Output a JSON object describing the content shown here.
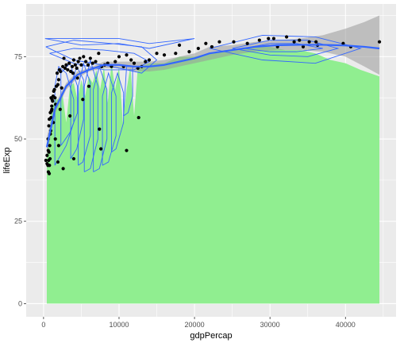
{
  "chart_data": {
    "type": "scatter",
    "xlabel": "gdpPercap",
    "ylabel": "lifeExp",
    "xlim": [
      -2300,
      46700
    ],
    "ylim": [
      -4,
      91
    ],
    "x_ticks": [
      0,
      10000,
      20000,
      30000,
      40000
    ],
    "x_tick_labels": [
      "0",
      "10000",
      "20000",
      "30000",
      "40000"
    ],
    "y_ticks": [
      0,
      25,
      50,
      75
    ],
    "y_tick_labels": [
      "0",
      "25",
      "50",
      "75"
    ],
    "grid": true,
    "colors": {
      "panel": "#ebebeb",
      "grid_major": "#ffffff",
      "area_fill": "#90ee90",
      "ribbon": "#999999",
      "smooth": "#3366ff",
      "contour": "#3366ff",
      "points": "#000000"
    },
    "area_profile": {
      "note": "Green filled area from y=0 up to a jagged upper profile (density-shaped)",
      "x": [
        430,
        1000,
        1500,
        2000,
        2500,
        3000,
        3500,
        4000,
        4500,
        5000,
        5500,
        6000,
        6500,
        7000,
        7500,
        8000,
        8500,
        9000,
        9500,
        10000,
        10500,
        11000,
        11500,
        12000,
        12500,
        13000,
        14000,
        15000,
        16000,
        17000,
        18000,
        20000,
        22000,
        24000,
        26000,
        28000,
        30000,
        32000,
        34000,
        36000,
        38000,
        40000,
        42000,
        44500
      ],
      "y": [
        44,
        58,
        62,
        62,
        64,
        55,
        66,
        67,
        62,
        68,
        63,
        69,
        67,
        71,
        65,
        72,
        61,
        73,
        65,
        72,
        55,
        65,
        72,
        57,
        72,
        72,
        73,
        73,
        73,
        74,
        75,
        75,
        76,
        77,
        77,
        78,
        78,
        77,
        77,
        76,
        74,
        73,
        71,
        69
      ]
    },
    "smooth": {
      "x": [
        430,
        1500,
        3000,
        4500,
        6000,
        8000,
        10000,
        12000,
        14000,
        16000,
        18000,
        20000,
        22000,
        25000,
        28000,
        31000,
        34000,
        37000,
        40000,
        42500,
        44500
      ],
      "y": [
        47.5,
        59,
        66,
        69.5,
        71,
        72.5,
        72.5,
        72,
        72,
        72.5,
        73.5,
        74.5,
        76,
        77,
        78,
        78.5,
        78.6,
        78.6,
        78.4,
        78,
        77.5
      ],
      "ribbon_low": [
        44.5,
        57.5,
        65,
        68.5,
        70.5,
        71.5,
        71.5,
        70.5,
        70.5,
        71,
        72,
        73,
        74,
        75.5,
        76.5,
        77,
        77,
        76.5,
        75,
        72,
        69.5
      ],
      "ribbon_high": [
        50.5,
        60.5,
        67,
        70.5,
        71.5,
        73.5,
        73.5,
        73.5,
        73.5,
        74,
        75,
        76,
        78,
        78.5,
        79.5,
        80,
        80.5,
        81.5,
        83.5,
        85.5,
        87.5
      ]
    },
    "contours": [
      {
        "x": [
          1500,
          2000,
          3000,
          4000,
          4000,
          3000,
          2000,
          1500,
          1500
        ],
        "y": [
          42,
          44,
          48,
          55,
          62,
          70,
          72,
          66,
          42
        ]
      },
      {
        "x": [
          2300,
          3500,
          4500,
          4500,
          3500,
          2300,
          2300
        ],
        "y": [
          48,
          52,
          58,
          66,
          73,
          70,
          48
        ]
      },
      {
        "x": [
          3600,
          4400,
          5300,
          5300,
          4400,
          3600,
          3600
        ],
        "y": [
          44,
          47,
          56,
          68,
          72,
          66,
          44
        ]
      },
      {
        "x": [
          4600,
          5200,
          6200,
          6200,
          5300,
          4600,
          4600
        ],
        "y": [
          42,
          43,
          51,
          67,
          73,
          66,
          42
        ]
      },
      {
        "x": [
          5400,
          6200,
          7200,
          7200,
          6200,
          5400,
          5400
        ],
        "y": [
          40,
          41,
          50,
          66,
          74,
          66,
          40
        ]
      },
      {
        "x": [
          6600,
          7400,
          8400,
          8400,
          7400,
          6600,
          6600
        ],
        "y": [
          40,
          41,
          50,
          65,
          72,
          65,
          40
        ]
      },
      {
        "x": [
          7800,
          8600,
          9600,
          9600,
          8600,
          7800,
          7800
        ],
        "y": [
          42,
          43,
          51,
          63,
          70,
          63,
          42
        ]
      },
      {
        "x": [
          9000,
          9600,
          10600,
          10600,
          9800,
          9000,
          9000
        ],
        "y": [
          46,
          47,
          55,
          64,
          70,
          64,
          46
        ]
      },
      {
        "x": [
          10600,
          11200,
          11800,
          11800,
          11000,
          10600
        ],
        "y": [
          57,
          58,
          63,
          72,
          72,
          57
        ]
      },
      {
        "x": [
          800,
          4000,
          8000,
          12000,
          14000,
          12000,
          8000,
          4000,
          800
        ],
        "y": [
          76,
          73,
          71,
          71,
          73.5,
          76,
          77,
          77.5,
          76
        ]
      },
      {
        "x": [
          300,
          4000,
          9000,
          13000,
          15000,
          13000,
          9000,
          4000,
          300
        ],
        "y": [
          78,
          74,
          72,
          70,
          74,
          78,
          79,
          80,
          78
        ]
      },
      {
        "x": [
          200,
          5000,
          10000,
          14000,
          20000,
          14000,
          10000,
          5000,
          200
        ],
        "y": [
          80.5,
          78.5,
          79,
          77.5,
          80.5,
          79,
          80.5,
          80.5,
          80.5
        ]
      },
      {
        "x": [
          26500,
          30000,
          33500,
          37000,
          33500,
          30000,
          26500
        ],
        "y": [
          77.5,
          76.5,
          76.5,
          77.5,
          79,
          79,
          77.5
        ]
      },
      {
        "x": [
          25000,
          30000,
          35000,
          39000,
          35000,
          30000,
          25000
        ],
        "y": [
          77.5,
          75.5,
          75,
          77.5,
          80,
          80,
          77.5
        ]
      },
      {
        "x": [
          22000,
          29000,
          36000,
          42000,
          36000,
          29000,
          22000
        ],
        "y": [
          77.5,
          74,
          73,
          77.5,
          81,
          81.5,
          77.5
        ]
      }
    ],
    "points": {
      "x": [
        310,
        470,
        580,
        620,
        640,
        680,
        720,
        750,
        780,
        820,
        860,
        900,
        950,
        990,
        1040,
        1090,
        1130,
        1200,
        1270,
        1350,
        1440,
        1520,
        1600,
        1700,
        1800,
        1900,
        2000,
        2100,
        2250,
        2400,
        2550,
        2700,
        2850,
        3000,
        3200,
        3400,
        3600,
        3800,
        4000,
        4200,
        4400,
        4600,
        4800,
        5000,
        5300,
        5600,
        5900,
        6200,
        6500,
        6900,
        7300,
        7700,
        8100,
        8500,
        9000,
        9500,
        10000,
        10600,
        11000,
        11600,
        12000,
        12500,
        13000,
        13500,
        14000,
        15000,
        16000,
        17500,
        18000,
        19300,
        20500,
        21500,
        22300,
        23300,
        25200,
        27000,
        28600,
        29800,
        30500,
        31000,
        32200,
        33200,
        33900,
        34400,
        35200,
        36100,
        36300,
        39700,
        40700,
        44500,
        470,
        600,
        700,
        760,
        900,
        1000,
        1100,
        1300,
        1560,
        2000,
        2600,
        3500,
        4000,
        7400,
        7600,
        11000,
        12600,
        5200,
        6000,
        4500,
        3900,
        2200,
        1900
      ],
      "y": [
        43.5,
        45.0,
        42.0,
        46.5,
        40.0,
        43.5,
        46.0,
        39.5,
        42.0,
        48.0,
        44.0,
        51.5,
        52.5,
        56.5,
        58.5,
        60.0,
        62.0,
        61.5,
        63.0,
        64.5,
        65.0,
        62.5,
        60.5,
        66.0,
        70.0,
        66.5,
        68.0,
        71.0,
        70.5,
        65.5,
        72.0,
        74.5,
        71.5,
        72.5,
        71.0,
        73.0,
        70.5,
        72.0,
        74.0,
        72.5,
        71.5,
        73.5,
        74.5,
        72.5,
        75.0,
        73.5,
        72.5,
        74.5,
        73.0,
        73.5,
        76.0,
        72.0,
        72.5,
        73.0,
        72.0,
        73.5,
        75.0,
        72.0,
        75.5,
        74.0,
        73.0,
        71.5,
        72.0,
        73.5,
        74.0,
        76.0,
        75.5,
        76.0,
        78.5,
        76.5,
        77.5,
        79.0,
        78.0,
        79.5,
        79.5,
        79.0,
        80.0,
        80.5,
        80.5,
        78.0,
        81.0,
        79.5,
        80.0,
        78.0,
        79.5,
        79.5,
        78.5,
        79.0,
        78.0,
        79.5,
        42.5,
        50.0,
        54.0,
        56.0,
        58.0,
        62.5,
        59.0,
        55.0,
        50.0,
        48.0,
        41.0,
        57.0,
        44.0,
        53.0,
        47.0,
        46.5,
        56.5,
        62.0,
        66.0,
        68.5,
        70.0,
        59.0,
        43.0
      ]
    }
  }
}
